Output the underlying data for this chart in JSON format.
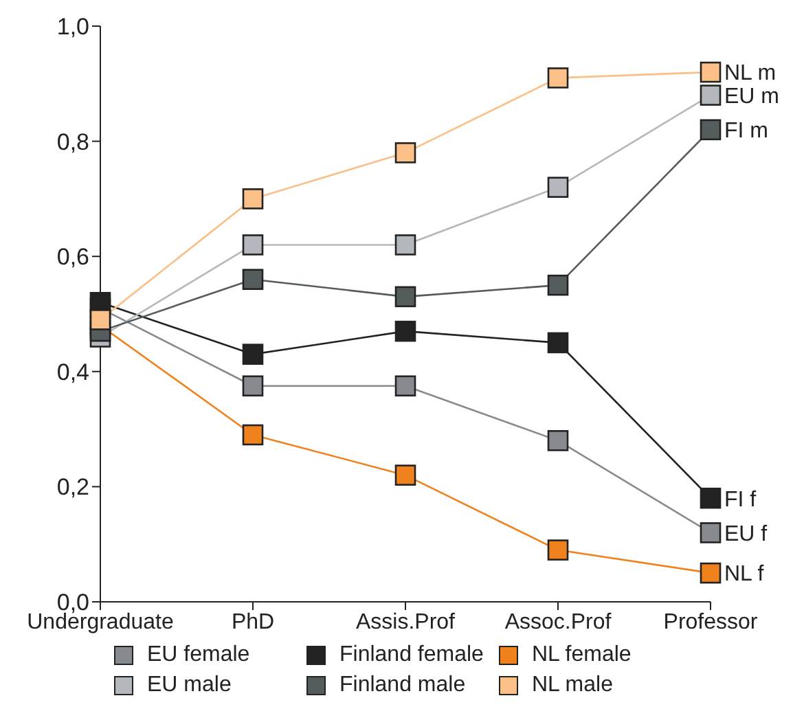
{
  "chart_data": {
    "type": "line",
    "categories": [
      "Undergraduate",
      "PhD",
      "Assis.Prof",
      "Assoc.Prof",
      "Professor"
    ],
    "series": [
      {
        "name": "EU female",
        "color": "#878b90",
        "values": [
          0.51,
          0.375,
          0.375,
          0.28,
          0.12
        ]
      },
      {
        "name": "Finland female",
        "color": "#222222",
        "values": [
          0.52,
          0.43,
          0.47,
          0.45,
          0.18
        ]
      },
      {
        "name": "NL female",
        "color": "#f0821e",
        "values": [
          0.48,
          0.29,
          0.22,
          0.09,
          0.05
        ]
      },
      {
        "name": "EU male",
        "color": "#b4b8bd",
        "values": [
          0.46,
          0.62,
          0.62,
          0.72,
          0.88
        ]
      },
      {
        "name": "Finland male",
        "color": "#555c5c",
        "values": [
          0.47,
          0.56,
          0.53,
          0.55,
          0.82
        ]
      },
      {
        "name": "NL male",
        "color": "#fbbf88",
        "values": [
          0.49,
          0.7,
          0.78,
          0.91,
          0.92
        ]
      }
    ],
    "ylim": [
      0,
      1
    ],
    "yticks": [
      {
        "value": 0,
        "label": "0,0"
      },
      {
        "value": 0.2,
        "label": "0,2"
      },
      {
        "value": 0.4,
        "label": "0,4"
      },
      {
        "value": 0.6,
        "label": "0,6"
      },
      {
        "value": 0.8,
        "label": "0,8"
      },
      {
        "value": 1,
        "label": "1,0"
      }
    ],
    "annotations": [
      {
        "text": "NL m",
        "x": "Professor",
        "y": 0.92
      },
      {
        "text": "EU m",
        "x": "Professor",
        "y": 0.88
      },
      {
        "text": "FI m",
        "x": "Professor",
        "y": 0.82
      },
      {
        "text": "FI f",
        "x": "Professor",
        "y": 0.18
      },
      {
        "text": "EU f",
        "x": "Professor",
        "y": 0.12
      },
      {
        "text": "NL f",
        "x": "Professor",
        "y": 0.05
      }
    ],
    "marker": "square",
    "grid": false,
    "legend": "bottom"
  }
}
